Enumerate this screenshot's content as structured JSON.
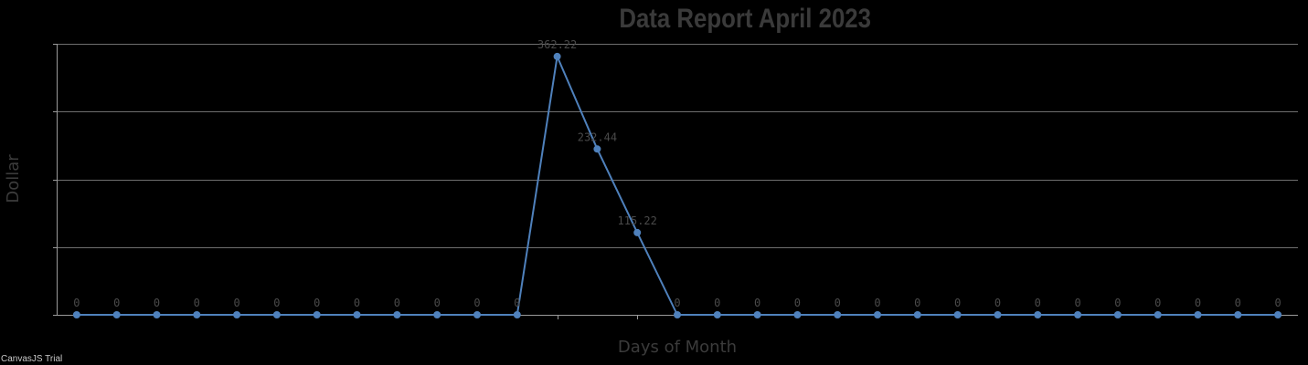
{
  "colors": {
    "background": "#000000",
    "series": "#4f81bc",
    "title": "#3a3a3a",
    "gridline": "#6e6e6e"
  },
  "credit": "CanvasJS Trial",
  "chart_data": {
    "type": "line",
    "title": "Data Report April 2023",
    "xlabel": "Days of Month",
    "ylabel": "Dollar",
    "x": [
      1,
      2,
      3,
      4,
      5,
      6,
      7,
      8,
      9,
      10,
      11,
      12,
      13,
      14,
      15,
      16,
      17,
      18,
      19,
      20,
      21,
      22,
      23,
      24,
      25,
      26,
      27,
      28,
      29,
      30,
      31
    ],
    "xlim": [
      0.5,
      31.5
    ],
    "ylim": [
      0,
      380
    ],
    "y_gridlines": [
      0,
      95,
      190,
      285,
      380
    ],
    "x_ticks": [
      13,
      15
    ],
    "tick_labels_visible": false,
    "grid": true,
    "series": [
      {
        "values": [
          0,
          0,
          0,
          0,
          0,
          0,
          0,
          0,
          0,
          0,
          0,
          0,
          362.22,
          232.44,
          115.22,
          0,
          0,
          0,
          0,
          0,
          0,
          0,
          0,
          0,
          0,
          0,
          0,
          0,
          0,
          0,
          0
        ],
        "labels": [
          "0",
          "0",
          "0",
          "0",
          "0",
          "0",
          "0",
          "0",
          "0",
          "0",
          "0",
          "0",
          "362.22",
          "232.44",
          "115.22",
          "0",
          "0",
          "0",
          "0",
          "0",
          "0",
          "0",
          "0",
          "0",
          "0",
          "0",
          "0",
          "0",
          "0",
          "0",
          "0"
        ]
      }
    ]
  }
}
